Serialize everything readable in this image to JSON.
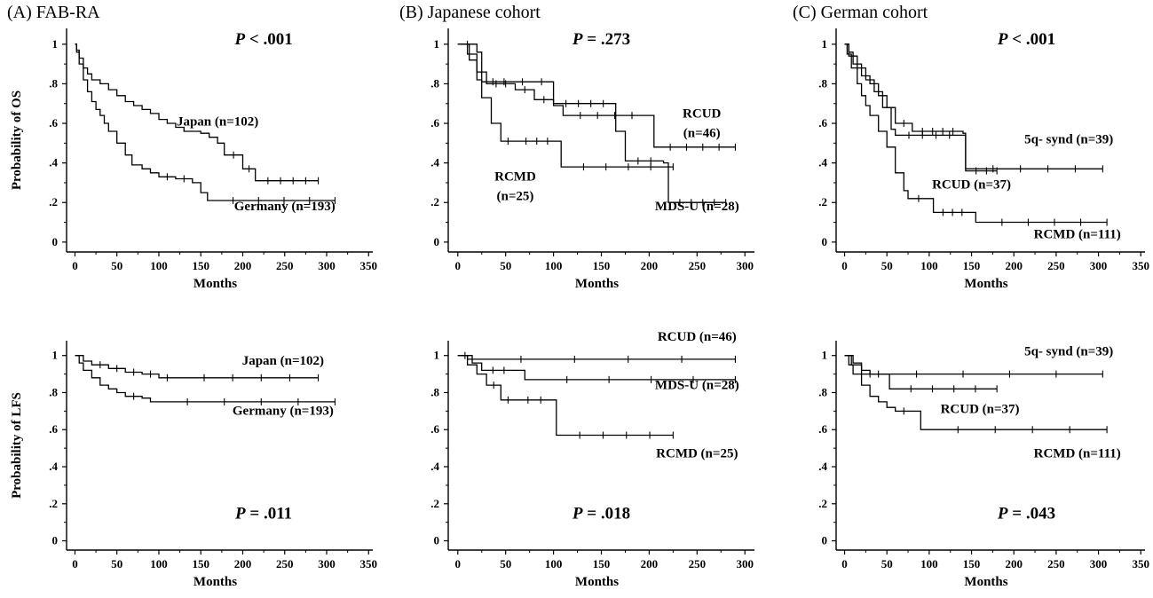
{
  "panel_titles": {
    "a": "(A) FAB-RA",
    "b": "(B)  Japanese cohort",
    "c": "(C)  German cohort"
  },
  "chart_data": [
    {
      "id": "a-os",
      "type": "line",
      "step": true,
      "panel": "A",
      "title": "",
      "xlabel": "Months",
      "ylabel": "Probability of OS",
      "xlim": [
        -10,
        355
      ],
      "ylim": [
        -0.05,
        1.08
      ],
      "xticks": [
        0,
        50,
        100,
        150,
        200,
        250,
        300,
        350
      ],
      "yticks": [
        0,
        0.2,
        0.4,
        0.6,
        0.8,
        1
      ],
      "yticklabels": [
        "0",
        ".2",
        ".4",
        ".6",
        ".8",
        "1"
      ],
      "pvalue": {
        "label": "P",
        "text": " < .001",
        "x": 225,
        "y": 1.0
      },
      "series": [
        {
          "name": "Japan (n=102)",
          "label_x": 170,
          "label_y": 0.59,
          "points": [
            [
              0,
              1
            ],
            [
              2,
              0.97
            ],
            [
              5,
              0.93
            ],
            [
              10,
              0.88
            ],
            [
              15,
              0.85
            ],
            [
              20,
              0.82
            ],
            [
              30,
              0.8
            ],
            [
              40,
              0.77
            ],
            [
              50,
              0.74
            ],
            [
              60,
              0.71
            ],
            [
              70,
              0.69
            ],
            [
              80,
              0.67
            ],
            [
              90,
              0.65
            ],
            [
              100,
              0.62
            ],
            [
              110,
              0.6
            ],
            [
              120,
              0.58
            ],
            [
              130,
              0.56
            ],
            [
              140,
              0.56
            ],
            [
              150,
              0.55
            ],
            [
              160,
              0.53
            ],
            [
              170,
              0.5
            ],
            [
              178,
              0.44
            ],
            [
              200,
              0.37
            ],
            [
              215,
              0.31
            ],
            [
              290,
              0.31
            ]
          ]
        },
        {
          "name": "Germany (n=193)",
          "label_x": 250,
          "label_y": 0.16,
          "points": [
            [
              0,
              1
            ],
            [
              2,
              0.96
            ],
            [
              5,
              0.9
            ],
            [
              10,
              0.82
            ],
            [
              15,
              0.76
            ],
            [
              20,
              0.71
            ],
            [
              25,
              0.67
            ],
            [
              30,
              0.64
            ],
            [
              35,
              0.6
            ],
            [
              40,
              0.56
            ],
            [
              50,
              0.5
            ],
            [
              60,
              0.44
            ],
            [
              68,
              0.39
            ],
            [
              80,
              0.37
            ],
            [
              90,
              0.35
            ],
            [
              100,
              0.33
            ],
            [
              120,
              0.32
            ],
            [
              140,
              0.3
            ],
            [
              150,
              0.25
            ],
            [
              158,
              0.21
            ],
            [
              310,
              0.21
            ]
          ]
        }
      ]
    },
    {
      "id": "b-os",
      "type": "line",
      "step": true,
      "panel": "B",
      "title": "",
      "xlabel": "Months",
      "ylabel": "",
      "xlim": [
        -10,
        310
      ],
      "ylim": [
        -0.05,
        1.08
      ],
      "xticks": [
        0,
        50,
        100,
        150,
        200,
        250,
        300
      ],
      "yticks": [
        0,
        0.2,
        0.4,
        0.6,
        0.8,
        1
      ],
      "yticklabels": [
        "0",
        ".2",
        ".4",
        ".6",
        ".8",
        "1"
      ],
      "pvalue": {
        "label": "P",
        "text": " = .273",
        "x": 150,
        "y": 1.0
      },
      "series": [
        {
          "name": "RCUD",
          "name2": "(n=46)",
          "label_x": 255,
          "label_y": 0.63,
          "points": [
            [
              0,
              1
            ],
            [
              10,
              0.95
            ],
            [
              20,
              0.86
            ],
            [
              30,
              0.8
            ],
            [
              60,
              0.77
            ],
            [
              80,
              0.72
            ],
            [
              100,
              0.69
            ],
            [
              110,
              0.64
            ],
            [
              200,
              0.64
            ],
            [
              205,
              0.48
            ],
            [
              290,
              0.48
            ]
          ]
        },
        {
          "name": "RCMD",
          "name2": "(n=25)",
          "label_x": 60,
          "label_y": 0.31,
          "points": [
            [
              0,
              1
            ],
            [
              12,
              0.92
            ],
            [
              20,
              0.82
            ],
            [
              25,
              0.73
            ],
            [
              35,
              0.6
            ],
            [
              45,
              0.51
            ],
            [
              60,
              0.51
            ],
            [
              105,
              0.51
            ],
            [
              108,
              0.38
            ],
            [
              225,
              0.38
            ]
          ]
        },
        {
          "name": "MDS-U (n=28)",
          "label_x": 250,
          "label_y": 0.16,
          "points": [
            [
              0,
              1
            ],
            [
              20,
              0.96
            ],
            [
              25,
              0.81
            ],
            [
              60,
              0.81
            ],
            [
              75,
              0.81
            ],
            [
              100,
              0.7
            ],
            [
              165,
              0.56
            ],
            [
              175,
              0.41
            ],
            [
              215,
              0.4
            ],
            [
              220,
              0.2
            ],
            [
              280,
              0.2
            ]
          ]
        }
      ]
    },
    {
      "id": "c-os",
      "type": "line",
      "step": true,
      "panel": "C",
      "title": "",
      "xlabel": "Months",
      "ylabel": "",
      "xlim": [
        -10,
        355
      ],
      "ylim": [
        -0.05,
        1.08
      ],
      "xticks": [
        0,
        50,
        100,
        150,
        200,
        250,
        300,
        350
      ],
      "yticks": [
        0,
        0.2,
        0.4,
        0.6,
        0.8,
        1
      ],
      "yticklabels": [
        "0",
        ".2",
        ".4",
        ".6",
        ".8",
        "1"
      ],
      "pvalue": {
        "label": "P",
        "text": " < .001",
        "x": 215,
        "y": 1.0
      },
      "series": [
        {
          "name": "5q- synd (n=39)",
          "label_x": 265,
          "label_y": 0.5,
          "points": [
            [
              0,
              1
            ],
            [
              5,
              0.96
            ],
            [
              10,
              0.9
            ],
            [
              20,
              0.84
            ],
            [
              30,
              0.8
            ],
            [
              40,
              0.74
            ],
            [
              50,
              0.68
            ],
            [
              60,
              0.6
            ],
            [
              80,
              0.56
            ],
            [
              140,
              0.55
            ],
            [
              143,
              0.37
            ],
            [
              305,
              0.37
            ]
          ]
        },
        {
          "name": "RCUD (n=37)",
          "label_x": 150,
          "label_y": 0.27,
          "points": [
            [
              0,
              1
            ],
            [
              5,
              0.94
            ],
            [
              15,
              0.88
            ],
            [
              25,
              0.82
            ],
            [
              35,
              0.76
            ],
            [
              45,
              0.68
            ],
            [
              55,
              0.57
            ],
            [
              60,
              0.54
            ],
            [
              140,
              0.54
            ],
            [
              143,
              0.36
            ],
            [
              180,
              0.36
            ]
          ]
        },
        {
          "name": "RCMD (n=111)",
          "label_x": 275,
          "label_y": 0.02,
          "points": [
            [
              0,
              1
            ],
            [
              3,
              0.95
            ],
            [
              8,
              0.88
            ],
            [
              15,
              0.8
            ],
            [
              20,
              0.74
            ],
            [
              25,
              0.69
            ],
            [
              30,
              0.64
            ],
            [
              40,
              0.56
            ],
            [
              50,
              0.48
            ],
            [
              60,
              0.35
            ],
            [
              70,
              0.26
            ],
            [
              75,
              0.22
            ],
            [
              100,
              0.22
            ],
            [
              105,
              0.15
            ],
            [
              150,
              0.15
            ],
            [
              155,
              0.1
            ],
            [
              310,
              0.1
            ]
          ]
        }
      ]
    },
    {
      "id": "a-lfs",
      "type": "line",
      "step": true,
      "panel": "A",
      "title": "",
      "xlabel": "Months",
      "ylabel": "Probability of LFS",
      "xlim": [
        -10,
        355
      ],
      "ylim": [
        -0.05,
        1.08
      ],
      "xticks": [
        0,
        50,
        100,
        150,
        200,
        250,
        300,
        350
      ],
      "yticks": [
        0,
        0.2,
        0.4,
        0.6,
        0.8,
        1
      ],
      "yticklabels": [
        "0",
        ".2",
        ".4",
        ".6",
        ".8",
        "1"
      ],
      "pvalue": {
        "label": "P",
        "text": " = .011",
        "x": 225,
        "y": 0.12
      },
      "series": [
        {
          "name": "Japan (n=102)",
          "label_x": 248,
          "label_y": 0.95,
          "points": [
            [
              0,
              1
            ],
            [
              10,
              0.97
            ],
            [
              20,
              0.95
            ],
            [
              40,
              0.93
            ],
            [
              60,
              0.91
            ],
            [
              80,
              0.9
            ],
            [
              100,
              0.88
            ],
            [
              120,
              0.88
            ],
            [
              290,
              0.88
            ]
          ]
        },
        {
          "name": "Germany (n=193)",
          "label_x": 248,
          "label_y": 0.68,
          "points": [
            [
              0,
              1
            ],
            [
              5,
              0.96
            ],
            [
              10,
              0.92
            ],
            [
              20,
              0.88
            ],
            [
              30,
              0.84
            ],
            [
              40,
              0.82
            ],
            [
              50,
              0.8
            ],
            [
              60,
              0.78
            ],
            [
              80,
              0.77
            ],
            [
              90,
              0.75
            ],
            [
              310,
              0.75
            ]
          ]
        }
      ]
    },
    {
      "id": "b-lfs",
      "type": "line",
      "step": true,
      "panel": "B",
      "title": "",
      "xlabel": "Months",
      "ylabel": "",
      "xlim": [
        -10,
        310
      ],
      "ylim": [
        -0.05,
        1.08
      ],
      "xticks": [
        0,
        50,
        100,
        150,
        200,
        250,
        300
      ],
      "yticks": [
        0,
        0.2,
        0.4,
        0.6,
        0.8,
        1
      ],
      "yticklabels": [
        "0",
        ".2",
        ".4",
        ".6",
        ".8",
        "1"
      ],
      "pvalue": {
        "label": "P",
        "text": " = .018",
        "x": 150,
        "y": 0.12
      },
      "series": [
        {
          "name": "RCUD (n=46)",
          "label_x": 250,
          "label_y": 1.08,
          "points": [
            [
              0,
              1
            ],
            [
              10,
              0.98
            ],
            [
              290,
              0.98
            ]
          ]
        },
        {
          "name": "MDS-U (n=28)",
          "label_x": 250,
          "label_y": 0.82,
          "points": [
            [
              0,
              1
            ],
            [
              15,
              0.96
            ],
            [
              25,
              0.92
            ],
            [
              60,
              0.92
            ],
            [
              70,
              0.87
            ],
            [
              290,
              0.87
            ]
          ]
        },
        {
          "name": "RCMD (n=25)",
          "label_x": 250,
          "label_y": 0.45,
          "points": [
            [
              0,
              1
            ],
            [
              10,
              0.95
            ],
            [
              20,
              0.9
            ],
            [
              30,
              0.84
            ],
            [
              45,
              0.76
            ],
            [
              60,
              0.76
            ],
            [
              100,
              0.76
            ],
            [
              103,
              0.57
            ],
            [
              225,
              0.57
            ]
          ]
        }
      ]
    },
    {
      "id": "c-lfs",
      "type": "line",
      "step": true,
      "panel": "C",
      "title": "",
      "xlabel": "Months",
      "ylabel": "",
      "xlim": [
        -10,
        355
      ],
      "ylim": [
        -0.05,
        1.08
      ],
      "xticks": [
        0,
        50,
        100,
        150,
        200,
        250,
        300,
        350
      ],
      "yticks": [
        0,
        0.2,
        0.4,
        0.6,
        0.8,
        1
      ],
      "yticklabels": [
        "0",
        ".2",
        ".4",
        ".6",
        ".8",
        "1"
      ],
      "pvalue": {
        "label": "P",
        "text": " = .043",
        "x": 215,
        "y": 0.12
      },
      "series": [
        {
          "name": "5q- synd (n=39)",
          "label_x": 265,
          "label_y": 1.0,
          "points": [
            [
              0,
              1
            ],
            [
              10,
              0.96
            ],
            [
              20,
              0.92
            ],
            [
              30,
              0.9
            ],
            [
              305,
              0.9
            ]
          ]
        },
        {
          "name": "RCUD (n=37)",
          "label_x": 160,
          "label_y": 0.69,
          "points": [
            [
              0,
              1
            ],
            [
              8,
              0.95
            ],
            [
              20,
              0.9
            ],
            [
              50,
              0.9
            ],
            [
              53,
              0.82
            ],
            [
              180,
              0.82
            ]
          ]
        },
        {
          "name": "RCMD (n=111)",
          "label_x": 275,
          "label_y": 0.45,
          "points": [
            [
              0,
              1
            ],
            [
              5,
              0.95
            ],
            [
              10,
              0.9
            ],
            [
              20,
              0.84
            ],
            [
              30,
              0.78
            ],
            [
              40,
              0.75
            ],
            [
              50,
              0.72
            ],
            [
              60,
              0.7
            ],
            [
              80,
              0.7
            ],
            [
              90,
              0.6
            ],
            [
              310,
              0.6
            ]
          ]
        }
      ]
    }
  ]
}
